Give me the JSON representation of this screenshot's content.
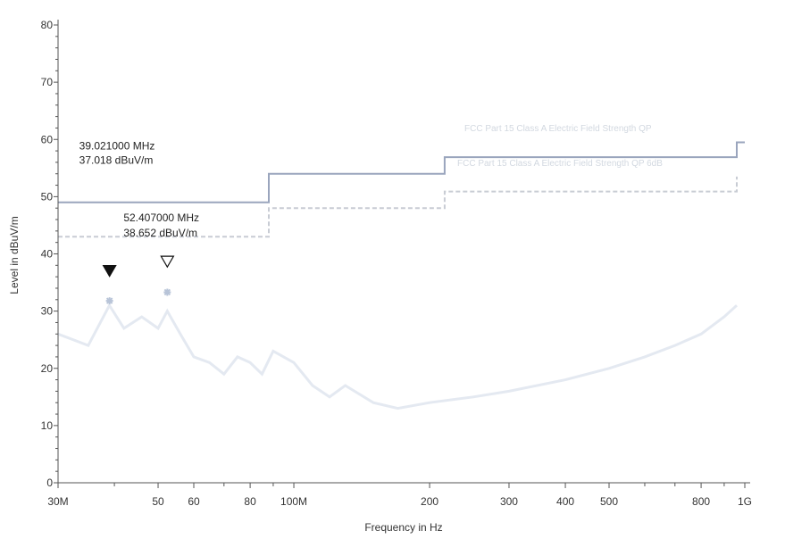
{
  "chart_data": {
    "type": "line",
    "xlabel": "Frequency in Hz",
    "ylabel": "Level in dBuV/m",
    "xscale": "log",
    "xlim": [
      30,
      1000
    ],
    "ylim": [
      0,
      80
    ],
    "x_ticks": [
      {
        "value": 30,
        "label": "30M"
      },
      {
        "value": 50,
        "label": "50"
      },
      {
        "value": 60,
        "label": "60"
      },
      {
        "value": 80,
        "label": "80"
      },
      {
        "value": 100,
        "label": "100M"
      },
      {
        "value": 200,
        "label": "200"
      },
      {
        "value": 300,
        "label": "300"
      },
      {
        "value": 400,
        "label": "400"
      },
      {
        "value": 500,
        "label": "500"
      },
      {
        "value": 800,
        "label": "800"
      },
      {
        "value": 1000,
        "label": "1G"
      }
    ],
    "y_ticks": [
      0,
      10,
      20,
      30,
      40,
      50,
      60,
      70,
      80
    ],
    "limit_label": "FCC Part 15 Class A Electric Field Strength QP",
    "limit_label_2": "FCC Part 15 Class A Electric Field Strength QP 6dB",
    "series": [
      {
        "role": "limit",
        "color": "#9aa5bd",
        "style": "solid",
        "x": [
          30,
          88,
          88,
          216,
          216,
          960,
          960,
          1000
        ],
        "y": [
          49,
          49,
          54,
          54,
          56.9,
          56.9,
          59.5,
          59.5
        ]
      },
      {
        "role": "limit-margin",
        "color": "#c8ccd4",
        "style": "dashed",
        "x": [
          30,
          88,
          88,
          216,
          216,
          960,
          960
        ],
        "y": [
          43,
          43,
          48,
          48,
          50.9,
          50.9,
          53.5
        ]
      },
      {
        "role": "measurement",
        "color": "#e4e9f1",
        "style": "solid",
        "x": [
          30,
          35,
          39,
          42,
          46,
          50,
          52.4,
          56,
          60,
          65,
          70,
          75,
          80,
          85,
          90,
          100,
          110,
          120,
          130,
          150,
          170,
          200,
          250,
          300,
          400,
          500,
          600,
          700,
          800,
          900,
          960
        ],
        "y": [
          26,
          24,
          31,
          27,
          29,
          27,
          30,
          26,
          22,
          21,
          19,
          22,
          21,
          19,
          23,
          21,
          17,
          15,
          17,
          14,
          13,
          14,
          15,
          16,
          18,
          20,
          22,
          24,
          26,
          29,
          31
        ]
      }
    ],
    "markers": [
      {
        "x": 39.021,
        "y": 37.018,
        "type": "filled",
        "freq_label": "39.021000 MHz",
        "level_label": "37.018 dBuV/m"
      },
      {
        "x": 52.407,
        "y": 38.652,
        "type": "open",
        "freq_label": "52.407000 MHz",
        "level_label": "38.652 dBuV/m"
      }
    ],
    "final_points": [
      {
        "x": 39.021,
        "y": 31.8
      },
      {
        "x": 52.407,
        "y": 33.3
      }
    ],
    "colors": {
      "axis": "#555555",
      "limit": "#9aa5bd",
      "margin": "#c8ccd4",
      "trace": "#e4e9f1",
      "marker": "#111111",
      "point": "#b8c4d8"
    }
  }
}
